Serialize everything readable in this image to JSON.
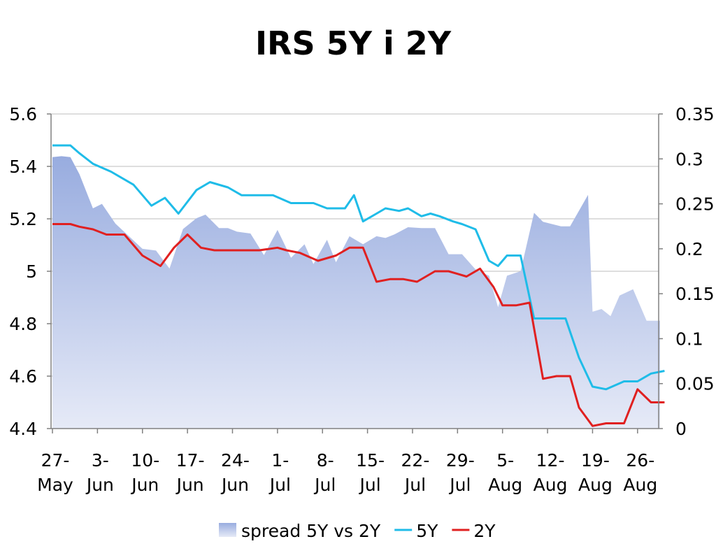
{
  "chart_data": {
    "type": "line",
    "title": "IRS 5Y i 2Y",
    "x_categories": [
      [
        "27-",
        "May"
      ],
      [
        "3-",
        "Jun"
      ],
      [
        "10-",
        "Jun"
      ],
      [
        "17-",
        "Jun"
      ],
      [
        "24-",
        "Jun"
      ],
      [
        "1-",
        "Jul"
      ],
      [
        "8-",
        "Jul"
      ],
      [
        "15-",
        "Jul"
      ],
      [
        "22-",
        "Jul"
      ],
      [
        "29-",
        "Jul"
      ],
      [
        "5-",
        "Aug"
      ],
      [
        "12-",
        "Aug"
      ],
      [
        "19-",
        "Aug"
      ],
      [
        "26-",
        "Aug"
      ]
    ],
    "y_left": {
      "ylim": [
        4.4,
        5.6
      ],
      "ticks": [
        "4.4",
        "4.6",
        "4.8",
        "5",
        "5.2",
        "5.4",
        "5.6"
      ]
    },
    "y_right": {
      "ylim": [
        0,
        0.35
      ],
      "ticks": [
        "0",
        "0.05",
        "0.1",
        "0.15",
        "0.2",
        "0.25",
        "0.3",
        "0.35"
      ]
    },
    "grid": true,
    "legend_position": "bottom",
    "series": [
      {
        "name": "spread 5Y vs 2Y",
        "kind": "area",
        "axis": "right",
        "color": "#a7b8e0",
        "x": [
          0,
          0.2,
          0.4,
          0.6,
          0.9,
          1.1,
          1.4,
          1.7,
          2.0,
          2.3,
          2.6,
          2.9,
          3.2,
          3.4,
          3.7,
          3.9,
          4.1,
          4.4,
          4.7,
          5.0,
          5.3,
          5.6,
          5.8,
          6.1,
          6.3,
          6.6,
          6.9,
          7.2,
          7.4,
          7.6,
          7.9,
          8.2,
          8.5,
          8.8,
          9.1,
          9.4,
          9.7,
          9.9,
          10.1,
          10.4,
          10.7,
          10.9,
          11.3,
          11.5,
          11.9,
          12.0,
          12.2,
          12.4,
          12.6,
          12.9,
          13.2,
          13.5
        ],
        "values": [
          0.302,
          0.303,
          0.302,
          0.283,
          0.245,
          0.25,
          0.228,
          0.214,
          0.2,
          0.198,
          0.178,
          0.222,
          0.234,
          0.238,
          0.223,
          0.223,
          0.219,
          0.217,
          0.193,
          0.221,
          0.19,
          0.205,
          0.183,
          0.21,
          0.185,
          0.214,
          0.205,
          0.214,
          0.212,
          0.216,
          0.224,
          0.223,
          0.223,
          0.194,
          0.194,
          0.177,
          0.17,
          0.135,
          0.17,
          0.175,
          0.24,
          0.23,
          0.225,
          0.225,
          0.26,
          0.13,
          0.133,
          0.125,
          0.148,
          0.155,
          0.12,
          0.12
        ]
      },
      {
        "name": "5Y",
        "kind": "line",
        "axis": "left",
        "color": "#1fbce8",
        "x": [
          0,
          0.4,
          0.6,
          0.9,
          1.3,
          1.8,
          2.2,
          2.5,
          2.8,
          3.2,
          3.5,
          3.9,
          4.2,
          4.5,
          4.9,
          5.3,
          5.8,
          6.1,
          6.5,
          6.7,
          6.9,
          7.2,
          7.4,
          7.7,
          7.9,
          8.2,
          8.4,
          8.6,
          8.9,
          9.1,
          9.4,
          9.7,
          9.9,
          10.1,
          10.4,
          10.7,
          11.1,
          11.4,
          11.7,
          12.0,
          12.3,
          12.7,
          13.0,
          13.3,
          13.6
        ],
        "values": [
          5.48,
          5.48,
          5.45,
          5.41,
          5.38,
          5.33,
          5.25,
          5.28,
          5.22,
          5.31,
          5.34,
          5.32,
          5.29,
          5.29,
          5.29,
          5.26,
          5.26,
          5.24,
          5.24,
          5.29,
          5.19,
          5.22,
          5.24,
          5.23,
          5.24,
          5.21,
          5.22,
          5.21,
          5.19,
          5.18,
          5.16,
          5.04,
          5.02,
          5.06,
          5.06,
          4.82,
          4.82,
          4.82,
          4.67,
          4.56,
          4.55,
          4.58,
          4.58,
          4.61,
          4.62
        ]
      },
      {
        "name": "2Y",
        "kind": "line",
        "axis": "left",
        "color": "#e02020",
        "x": [
          0,
          0.4,
          0.6,
          0.9,
          1.2,
          1.6,
          2.0,
          2.4,
          2.7,
          3.0,
          3.3,
          3.6,
          3.9,
          4.3,
          4.6,
          5.0,
          5.2,
          5.5,
          5.9,
          6.3,
          6.6,
          6.9,
          7.2,
          7.5,
          7.8,
          8.1,
          8.5,
          8.8,
          9.0,
          9.2,
          9.5,
          9.8,
          10.0,
          10.3,
          10.6,
          10.9,
          11.2,
          11.5,
          11.7,
          12.0,
          12.3,
          12.7,
          13.0,
          13.3,
          13.6
        ],
        "values": [
          5.18,
          5.18,
          5.17,
          5.16,
          5.14,
          5.14,
          5.06,
          5.02,
          5.09,
          5.14,
          5.09,
          5.08,
          5.08,
          5.08,
          5.08,
          5.09,
          5.08,
          5.07,
          5.04,
          5.06,
          5.09,
          5.09,
          4.96,
          4.97,
          4.97,
          4.96,
          5.0,
          5.0,
          4.99,
          4.98,
          5.01,
          4.94,
          4.87,
          4.87,
          4.88,
          4.59,
          4.6,
          4.6,
          4.48,
          4.41,
          4.42,
          4.42,
          4.55,
          4.5,
          4.5
        ]
      }
    ]
  }
}
